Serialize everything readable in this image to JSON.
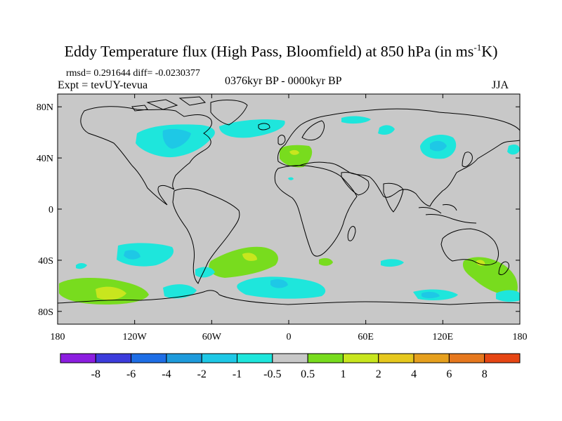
{
  "title_main": "Eddy Temperature flux (High Pass, Bloomfield) at 850 hPa (in ms",
  "title_sup": "-1",
  "title_end": "K)",
  "stats": "rmsd= 0.291644 diff= -0.0230377",
  "expt": "Expt = tevUY-tevua",
  "period": "0376kyr BP - 0000kyr BP",
  "season": "JJA",
  "axes": {
    "lon_ticks": [
      {
        "lon": -180,
        "label": "180"
      },
      {
        "lon": -120,
        "label": "120W"
      },
      {
        "lon": -60,
        "label": "60W"
      },
      {
        "lon": 0,
        "label": "0"
      },
      {
        "lon": 60,
        "label": "60E"
      },
      {
        "lon": 120,
        "label": "120E"
      },
      {
        "lon": 180,
        "label": "180"
      }
    ],
    "lat_ticks": [
      {
        "lat": 80,
        "label": "80N"
      },
      {
        "lat": 40,
        "label": "40N"
      },
      {
        "lat": 0,
        "label": "0"
      },
      {
        "lat": -40,
        "label": "40S"
      },
      {
        "lat": -80,
        "label": "80S"
      }
    ]
  },
  "colorbar": {
    "colors": [
      "#8c1ee0",
      "#3c3cdc",
      "#1e6ee6",
      "#1e9bdc",
      "#1ec8e6",
      "#1ee6dc",
      "#c8c8c8",
      "#78dc1e",
      "#c8e61e",
      "#e6c81e",
      "#e6a01e",
      "#e6781e",
      "#e64614"
    ],
    "labels": [
      "-8",
      "-6",
      "-4",
      "-2",
      "-1",
      "-0.5",
      "0.5",
      "1",
      "2",
      "4",
      "6",
      "8"
    ]
  },
  "colors": {
    "background": "#c8c8c8",
    "cyan_light": "#1ee6dc",
    "cyan": "#1ec8e6",
    "blue": "#1e9bdc",
    "green": "#78dc1e",
    "yellow_green": "#c8e61e"
  }
}
